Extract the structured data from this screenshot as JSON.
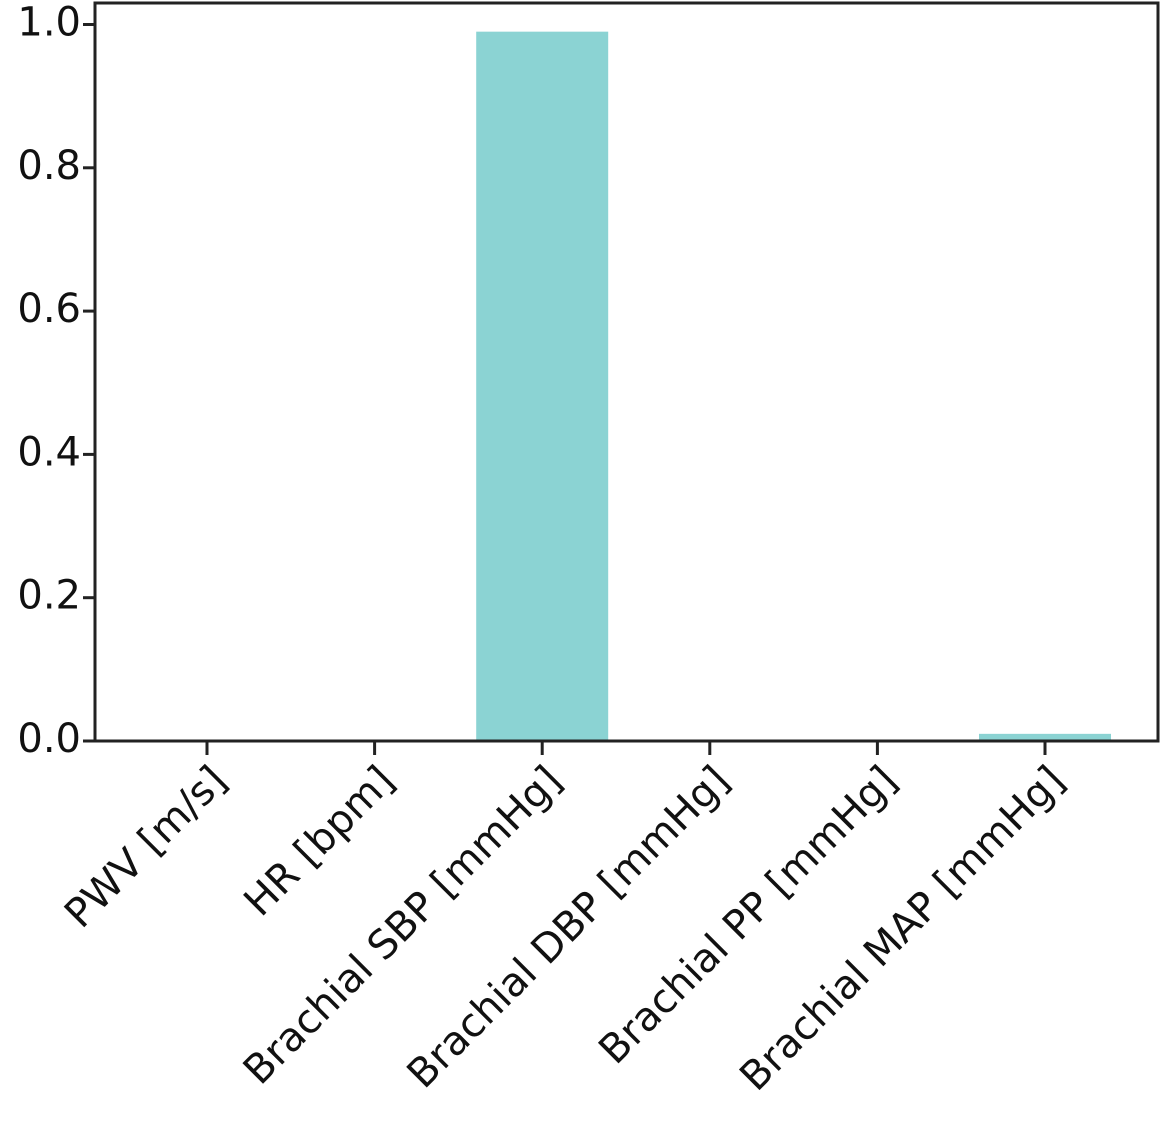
{
  "chart_data": {
    "type": "bar",
    "categories": [
      "PWV [m/s]",
      "HR [bpm]",
      "Brachial SBP [mmHg]",
      "Brachial DBP [mmHg]",
      "Brachial PP [mmHg]",
      "Brachial MAP [mmHg]"
    ],
    "values": [
      0,
      0,
      0.99,
      0,
      0,
      0.01
    ],
    "color": "#8bd3d3",
    "ylim": [
      0,
      1.03
    ],
    "yticks": [
      {
        "value": 0,
        "label": "0.0"
      },
      {
        "value": 0.2,
        "label": "0.2"
      },
      {
        "value": 0.4,
        "label": "0.4"
      },
      {
        "value": 0.6,
        "label": "0.6"
      },
      {
        "value": 0.8,
        "label": "0.8"
      },
      {
        "value": 1,
        "label": "1.0"
      }
    ],
    "grid": false
  }
}
